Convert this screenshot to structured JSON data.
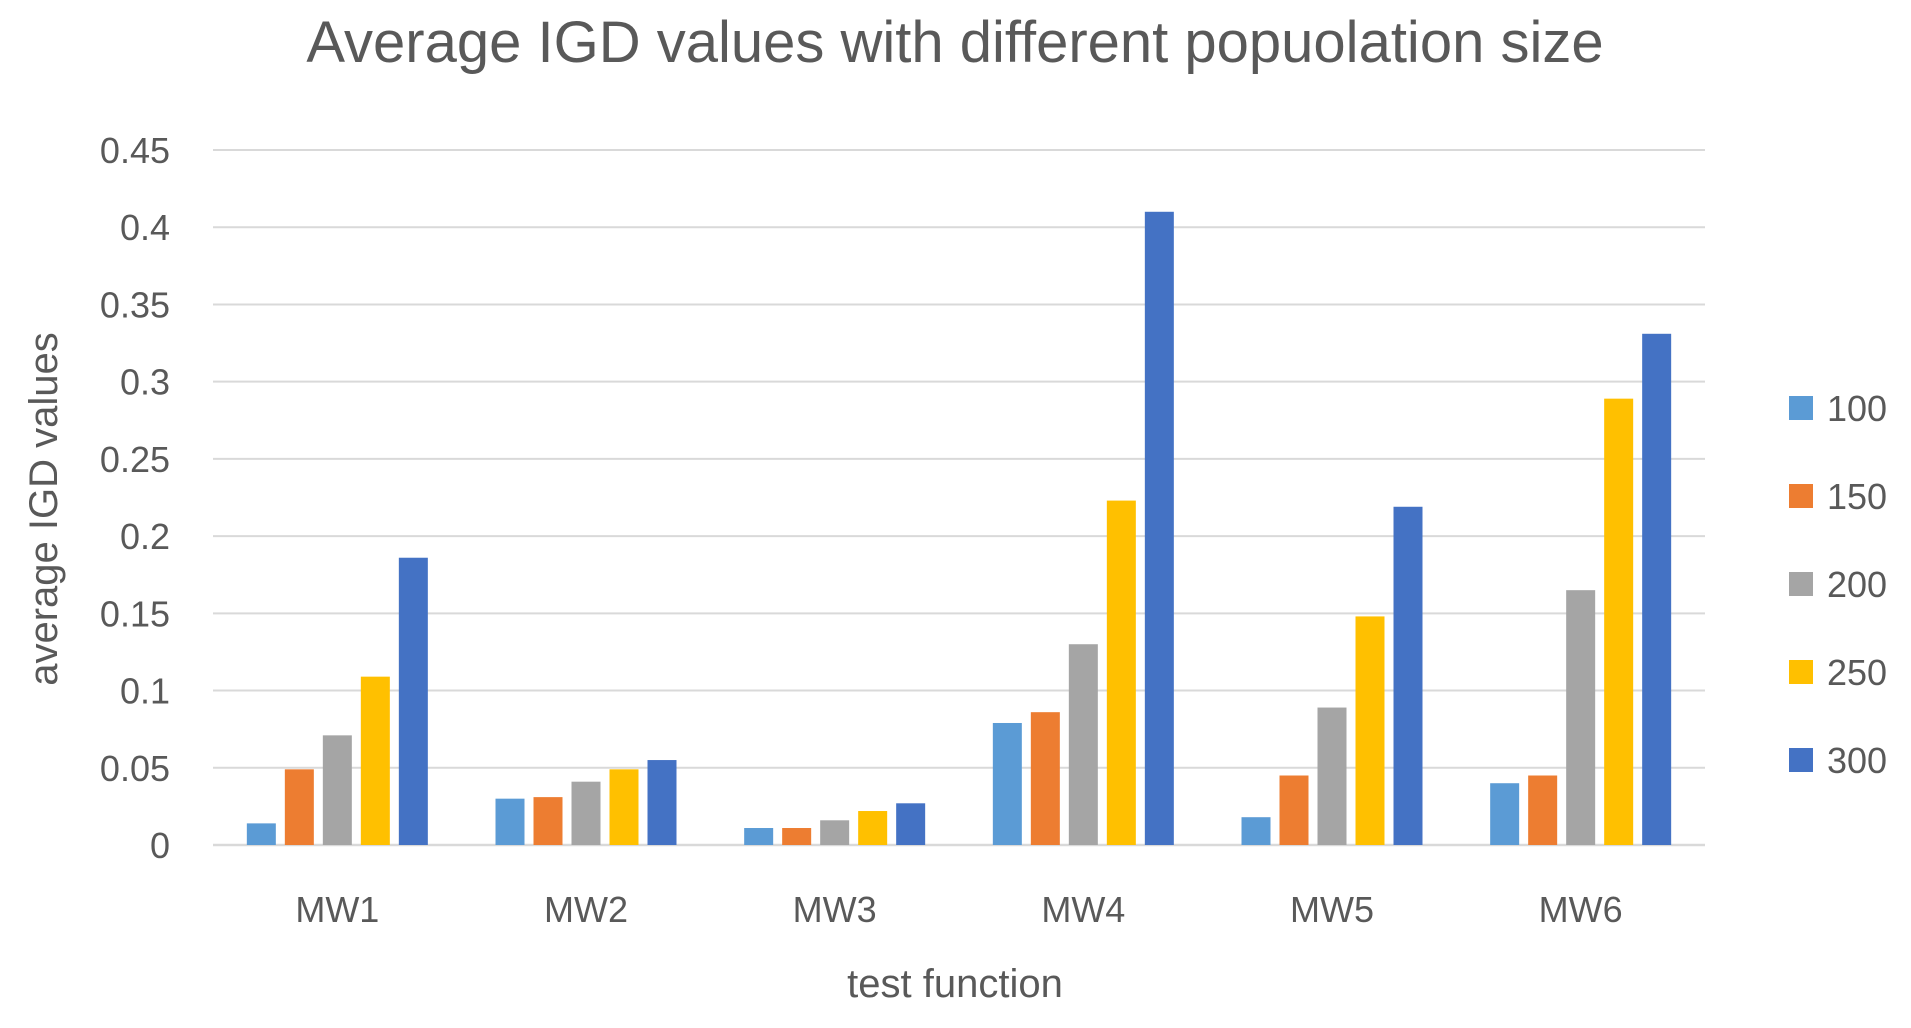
{
  "chart_data": {
    "type": "bar",
    "title": "Average IGD values with different popuolation size",
    "xlabel": "test function",
    "ylabel": "average IGD values",
    "categories": [
      "MW1",
      "MW2",
      "MW3",
      "MW4",
      "MW5",
      "MW6"
    ],
    "ylim": [
      0,
      0.45
    ],
    "yticks": [
      0,
      0.05,
      0.1,
      0.15,
      0.2,
      0.25,
      0.3,
      0.35,
      0.4,
      0.45
    ],
    "ytick_labels": [
      "0",
      "0.05",
      "0.1",
      "0.15",
      "0.2",
      "0.25",
      "0.3",
      "0.35",
      "0.4",
      "0.45"
    ],
    "grid": true,
    "legend_position": "right",
    "series": [
      {
        "name": "100",
        "color": "#5B9BD5",
        "values": [
          0.014,
          0.03,
          0.011,
          0.079,
          0.018,
          0.04
        ]
      },
      {
        "name": "150",
        "color": "#ED7D31",
        "values": [
          0.049,
          0.031,
          0.011,
          0.086,
          0.045,
          0.045
        ]
      },
      {
        "name": "200",
        "color": "#A5A5A5",
        "values": [
          0.071,
          0.041,
          0.016,
          0.13,
          0.089,
          0.165
        ]
      },
      {
        "name": "250",
        "color": "#FFC000",
        "values": [
          0.109,
          0.049,
          0.022,
          0.223,
          0.148,
          0.289
        ]
      },
      {
        "name": "300",
        "color": "#4472C4",
        "values": [
          0.186,
          0.055,
          0.027,
          0.41,
          0.219,
          0.331
        ]
      }
    ]
  }
}
